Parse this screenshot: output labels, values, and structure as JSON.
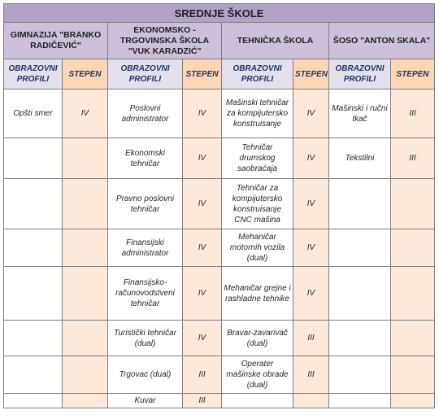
{
  "title": "SREDNJE ŠKOLE",
  "schools": [
    "GIMNAZIJA \"BRANKO RADIČEVIĆ\"",
    "EKONOMSKO - TRGOVINSKA ŠKOLA \"VUK KARADZIĆ\"",
    "TEHNIČKA ŠKOLA",
    "ŠOSO \"ANTON SKALA\""
  ],
  "col_headers": {
    "profile": "OBRAZOVNI PROFILI",
    "level": "STEPEN"
  },
  "rows": [
    [
      "Opšti smer",
      "IV",
      "Poslovni administrator",
      "IV",
      "Mašinski tehničar za kompijutersko konstruisanje",
      "IV",
      "Mašinski i ručni tkač",
      "III"
    ],
    [
      "",
      "",
      "Ekonomski tehničar",
      "IV",
      "Tehničar drumskog saobraćaja",
      "IV",
      "Tekstilni",
      "III"
    ],
    [
      "",
      "",
      "Pravno poslovni tehničar",
      "IV",
      "Tehničar za kompijutersko konstruisanje CNC mašina",
      "IV",
      "",
      ""
    ],
    [
      "",
      "",
      "Finansijski administrator",
      "IV",
      "Mehaničar motornih vozila (dual)",
      "IV",
      "",
      ""
    ],
    [
      "",
      "",
      "Finansijsko-računovodstveni tehničar",
      "IV",
      "Mehaničar grejne i rashladne tehnike",
      "IV",
      "",
      ""
    ],
    [
      "",
      "",
      "Turistički tehničar (dual)",
      "IV",
      "Bravar-zavarivač (dual)",
      "III",
      "",
      ""
    ],
    [
      "",
      "",
      "Trgovac (dual)",
      "III",
      "Operater mašinske obrade (dual)",
      "III",
      "",
      ""
    ],
    [
      "",
      "",
      "Kuvar",
      "III",
      "",
      "",
      "",
      ""
    ]
  ]
}
